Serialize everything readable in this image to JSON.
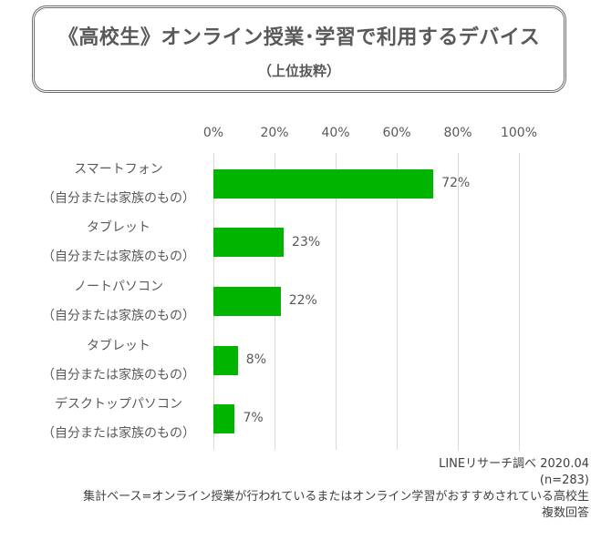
{
  "title": {
    "main": "《高校生》オンライン授業･学習で利用するデバイス",
    "sub": "（上位抜粋）"
  },
  "axis": {
    "ticks": [
      "0%",
      "20%",
      "40%",
      "60%",
      "80%",
      "100%"
    ]
  },
  "categories": [
    {
      "line1": "スマートフォン",
      "line2": "（自分または家族のもの）",
      "value_label": "72%"
    },
    {
      "line1": "タブレット",
      "line2": "（自分または家族のもの）",
      "value_label": "23%"
    },
    {
      "line1": "ノートパソコン",
      "line2": "（自分または家族のもの）",
      "value_label": "22%"
    },
    {
      "line1": "タブレット",
      "line2": "（自分または家族のもの）",
      "value_label": "8%"
    },
    {
      "line1": "デスクトップパソコン",
      "line2": "（自分または家族のもの）",
      "value_label": "7%"
    }
  ],
  "footer": {
    "source": "LINEリサーチ調べ  2020.04",
    "n": "(n=283)",
    "base": "集計ベース=オンライン授業が行われているまたはオンライン学習がおすすめされている高校生",
    "note": "複数回答"
  },
  "colors": {
    "bar": "#00B400",
    "text": "#595959",
    "grid": "#D9D9D9",
    "border": "#6E6E6E"
  },
  "chart_data": {
    "type": "bar",
    "orientation": "horizontal",
    "title": "《高校生》オンライン授業･学習で利用するデバイス（上位抜粋）",
    "categories": [
      "スマートフォン（自分または家族のもの）",
      "タブレット（自分または家族のもの）",
      "ノートパソコン（自分または家族のもの）",
      "タブレット（自分または家族のもの）",
      "デスクトップパソコン（自分または家族のもの）"
    ],
    "values": [
      72,
      23,
      22,
      8,
      7
    ],
    "xlabel": "",
    "ylabel": "",
    "xlim": [
      0,
      100
    ],
    "tick_labels": [
      "0%",
      "20%",
      "40%",
      "60%",
      "80%",
      "100%"
    ],
    "grid": true,
    "legend": null,
    "annotations": [
      "LINEリサーチ調べ  2020.04",
      "(n=283)",
      "集計ベース=オンライン授業が行われているまたはオンライン学習がおすすめされている高校生",
      "複数回答"
    ]
  }
}
